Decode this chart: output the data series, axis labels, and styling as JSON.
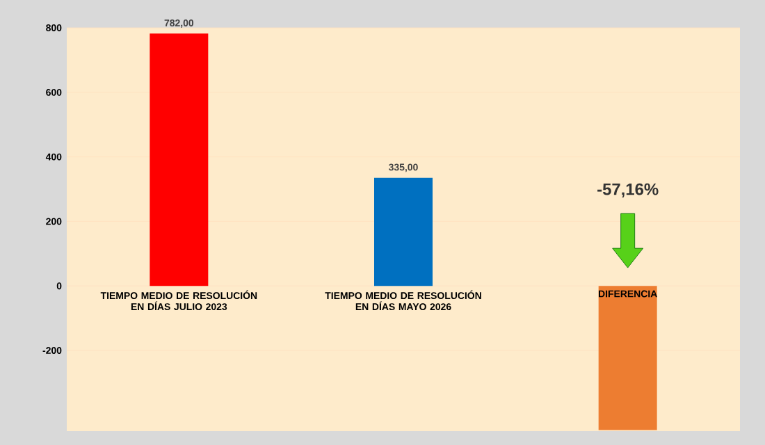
{
  "chart_data": {
    "type": "bar",
    "categories": [
      "TIEMPO MEDIO DE RESOLUCIÓN EN DÍAS JULIO 2023",
      "TIEMPO MEDIO DE RESOLUCIÓN EN DÍAS MAYO 2026",
      "DIFERENCIA"
    ],
    "values": [
      782,
      335,
      -447
    ],
    "colors": [
      "#ff0000",
      "#0070c0",
      "#ed7d31"
    ],
    "value_labels": [
      "782,00",
      "335,00",
      null
    ],
    "annotations": [
      "-57,16%"
    ],
    "ylim": [
      -450,
      800
    ],
    "yticks": [
      -200,
      0,
      200,
      400,
      600,
      800
    ],
    "grid": "y"
  }
}
